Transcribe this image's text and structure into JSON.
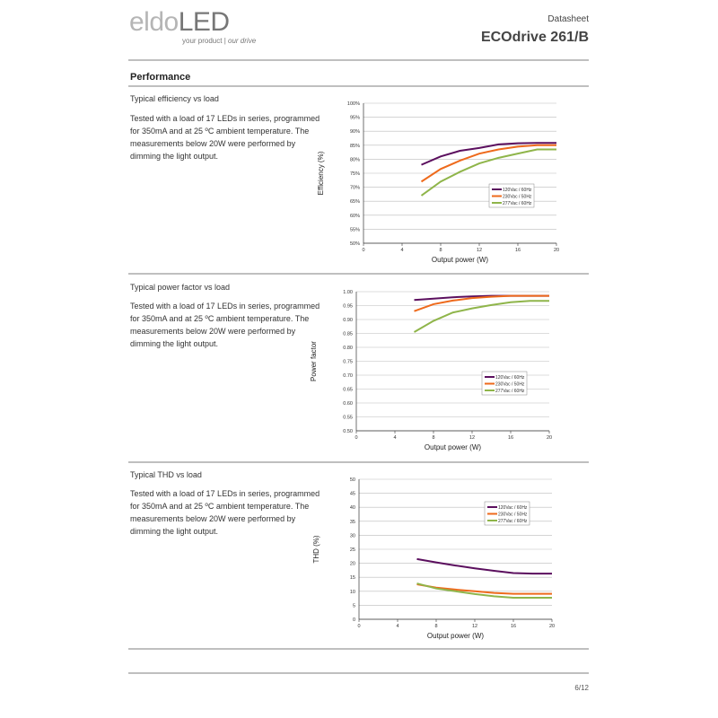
{
  "header": {
    "logo_a": "eldo",
    "logo_b": "LED",
    "tagline": "your product |",
    "tagline_em": "our drive",
    "doc_type": "Datasheet",
    "product": "ECOdrive 261/B"
  },
  "section": "Performance",
  "blocks": [
    {
      "title": "Typical efficiency vs load",
      "text": "Tested with a load of 17 LEDs in series, programmed for 350mA and at 25 ºC ambient temperature. The measurements below 20W were performed by dimming the light output."
    },
    {
      "title": "Typical power factor vs load",
      "text": "Tested with a load of 17 LEDs in series, programmed for 350mA and at 25 ºC ambient temperature. The measurements below 20W were performed by dimming the light output."
    },
    {
      "title": "Typical THD vs load",
      "text": "Tested with a load of 17 LEDs in series, programmed for 350mA and at 25 ºC ambient temperature. The measurements below 20W were performed by dimming the light output."
    }
  ],
  "chart_data": [
    {
      "type": "line",
      "x_label": "Output power (W)",
      "y_label": "Efficiency (%)",
      "x": [
        6,
        8,
        10,
        12,
        14,
        16,
        18,
        20
      ],
      "xlim": [
        0,
        20
      ],
      "xticks": [
        0,
        4,
        8,
        12,
        16,
        20
      ],
      "ylim": [
        50,
        100
      ],
      "yticks": [
        {
          "value": 50,
          "label": "50%"
        },
        {
          "value": 55,
          "label": "55%"
        },
        {
          "value": 60,
          "label": "60%"
        },
        {
          "value": 65,
          "label": "65%"
        },
        {
          "value": 70,
          "label": "70%"
        },
        {
          "value": 75,
          "label": "75%"
        },
        {
          "value": 80,
          "label": "80%"
        },
        {
          "value": 85,
          "label": "85%"
        },
        {
          "value": 90,
          "label": "90%"
        },
        {
          "value": 95,
          "label": "95%"
        },
        {
          "value": 100,
          "label": "100%"
        }
      ],
      "grid": true,
      "legend": "lower right",
      "series": [
        {
          "name": "120Vac / 60Hz",
          "color": "#5b0f5e",
          "values": [
            78,
            81,
            83,
            84,
            85.3,
            85.7,
            85.8,
            85.8
          ]
        },
        {
          "name": "230Vac / 50Hz",
          "color": "#ee6a1c",
          "values": [
            72,
            76.5,
            79.5,
            82,
            83.5,
            84.5,
            85,
            85
          ]
        },
        {
          "name": "277Vac / 60Hz",
          "color": "#8fb54a",
          "values": [
            67,
            72,
            75.5,
            78.5,
            80.5,
            82,
            83.5,
            83.5
          ]
        }
      ]
    },
    {
      "type": "line",
      "x_label": "Output power (W)",
      "y_label": "Power factor",
      "x": [
        6,
        8,
        10,
        12,
        14,
        16,
        18,
        20
      ],
      "xlim": [
        0,
        20
      ],
      "xticks": [
        0,
        4,
        8,
        12,
        16,
        20
      ],
      "ylim": [
        0.5,
        1
      ],
      "yticks": [
        {
          "value": 0.5,
          "label": "0.50"
        },
        {
          "value": 0.55,
          "label": "0.55"
        },
        {
          "value": 0.6,
          "label": "0.60"
        },
        {
          "value": 0.65,
          "label": "0.65"
        },
        {
          "value": 0.7,
          "label": "0.70"
        },
        {
          "value": 0.75,
          "label": "0.75"
        },
        {
          "value": 0.8,
          "label": "0.80"
        },
        {
          "value": 0.85,
          "label": "0.85"
        },
        {
          "value": 0.9,
          "label": "0.90"
        },
        {
          "value": 0.95,
          "label": "0.95"
        },
        {
          "value": 1,
          "label": "1.00"
        }
      ],
      "grid": true,
      "legend": "lower right",
      "series": [
        {
          "name": "120Vac / 60Hz",
          "color": "#5b0f5e",
          "values": [
            0.97,
            0.975,
            0.98,
            0.983,
            0.985,
            0.985,
            0.985,
            0.985
          ]
        },
        {
          "name": "230Vac / 50Hz",
          "color": "#ee6a1c",
          "values": [
            0.93,
            0.955,
            0.968,
            0.977,
            0.982,
            0.985,
            0.985,
            0.985
          ]
        },
        {
          "name": "277Vac / 60Hz",
          "color": "#8fb54a",
          "values": [
            0.855,
            0.895,
            0.925,
            0.94,
            0.952,
            0.962,
            0.967,
            0.967
          ]
        }
      ]
    },
    {
      "type": "line",
      "x_label": "Output power (W)",
      "y_label": "THD (%)",
      "x": [
        6,
        8,
        10,
        12,
        14,
        16,
        18,
        20
      ],
      "xlim": [
        0,
        20
      ],
      "xticks": [
        0,
        4,
        8,
        12,
        16,
        20
      ],
      "ylim": [
        0,
        50
      ],
      "yticks": [
        0,
        5,
        10,
        15,
        20,
        25,
        30,
        35,
        40,
        45,
        50
      ],
      "grid": true,
      "legend": "upper right",
      "series": [
        {
          "name": "120Vac / 60Hz",
          "color": "#5b0f5e",
          "values": [
            21.5,
            20.3,
            19.2,
            18.2,
            17.3,
            16.5,
            16.3,
            16.3
          ]
        },
        {
          "name": "230Vac / 50Hz",
          "color": "#ee6a1c",
          "values": [
            12.5,
            11.3,
            10.6,
            10,
            9.4,
            9.1,
            9.1,
            9.1
          ]
        },
        {
          "name": "277Vac / 60Hz",
          "color": "#8fb54a",
          "values": [
            12.8,
            11,
            10,
            9,
            8.2,
            7.7,
            7.7,
            7.7
          ]
        }
      ]
    }
  ],
  "footer": {
    "page": "6/12"
  }
}
